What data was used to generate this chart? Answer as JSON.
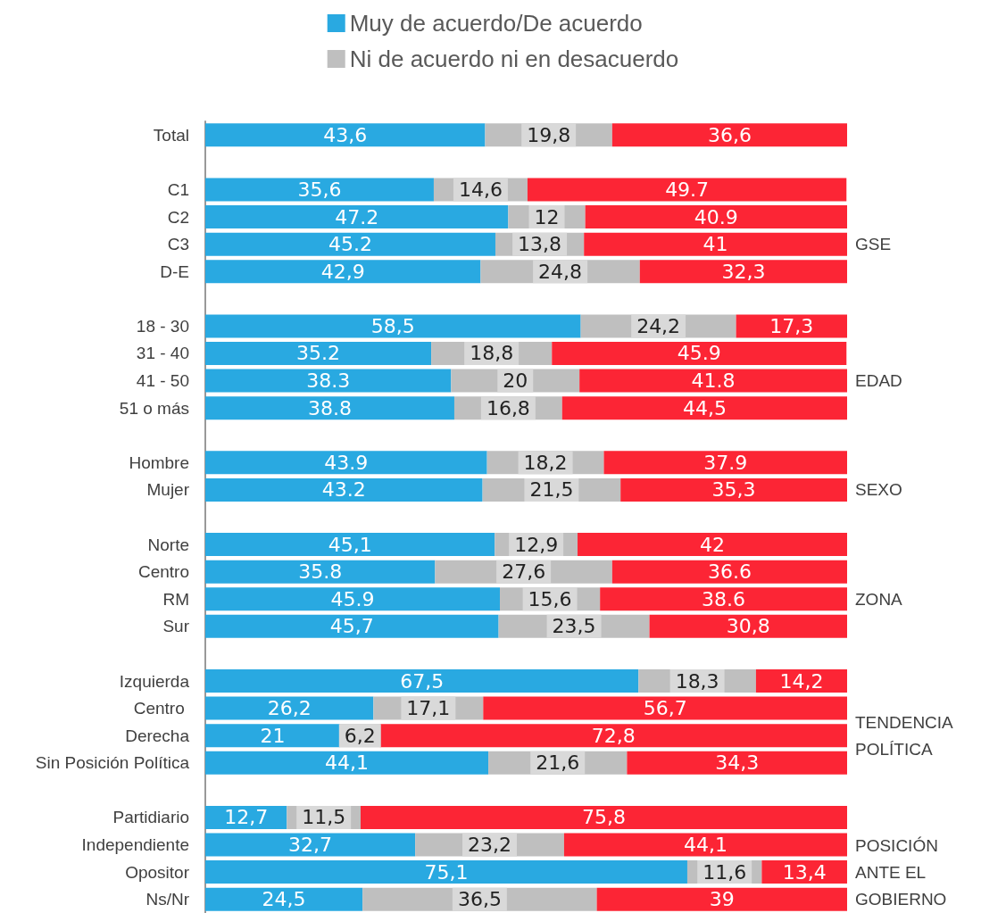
{
  "chart_data": {
    "type": "bar",
    "orientation": "horizontal",
    "stacked": true,
    "legend": "top",
    "tick_labels": "y",
    "xlim": [
      0,
      100
    ],
    "categories": [
      "Total",
      null,
      "C1",
      "C2",
      "C3",
      "D-E",
      null,
      "18 - 30",
      "31 - 40",
      "41 - 50",
      "51 o más",
      null,
      "Hombre",
      "Mujer",
      null,
      "Norte",
      "Centro",
      "RM",
      "Sur",
      null,
      "Izquierda",
      "Centro ",
      "Derecha",
      "Sin Posición Política",
      null,
      "Partidiario",
      "Independiente",
      "Opositor",
      "Ns/Nr"
    ],
    "series": [
      {
        "name": "Muy de acuerdo/De acuerdo",
        "color": "#29a9e1",
        "values": [
          43.6,
          null,
          35.6,
          47.2,
          45.2,
          42.9,
          null,
          58.5,
          35.2,
          38.3,
          38.8,
          null,
          43.9,
          43.2,
          null,
          45.1,
          35.8,
          45.9,
          45.7,
          null,
          67.5,
          26.2,
          21,
          44.1,
          null,
          12.7,
          32.7,
          75.1,
          24.5
        ],
        "value_labels": [
          "43,6",
          null,
          "35,6",
          "47.2",
          "45.2",
          "42,9",
          null,
          "58,5",
          "35.2",
          "38.3",
          "38.8",
          null,
          "43.9",
          "43.2",
          null,
          "45,1",
          "35.8",
          "45.9",
          "45,7",
          null,
          "67,5",
          "26,2",
          "21",
          "44,1",
          null,
          "12,7",
          "32,7",
          "75,1",
          "24,5"
        ]
      },
      {
        "name": "Ni de acuerdo ni en desacuerdo",
        "color": "#bfbfbf",
        "values": [
          19.8,
          null,
          14.6,
          12,
          13.8,
          24.8,
          null,
          24.2,
          18.8,
          20,
          16.8,
          null,
          18.2,
          21.5,
          null,
          12.9,
          27.6,
          15.6,
          23.5,
          null,
          18.3,
          17.1,
          6.2,
          21.6,
          null,
          11.5,
          23.2,
          11.6,
          36.5
        ],
        "value_labels": [
          "19,8",
          null,
          "14,6",
          "12",
          "13,8",
          "24,8",
          null,
          "24,2",
          "18,8",
          "20",
          "16,8",
          null,
          "18,2",
          "21,5",
          null,
          "12,9",
          "27,6",
          "15,6",
          "23,5",
          null,
          "18,3",
          "17,1",
          "6,2",
          "21,6",
          null,
          "11,5",
          "23,2",
          "11,6",
          "36,5"
        ]
      },
      {
        "color": "#fc2535",
        "values": [
          36.6,
          null,
          49.7,
          40.9,
          41,
          32.3,
          null,
          17.3,
          45.9,
          41.8,
          44.5,
          null,
          37.9,
          35.3,
          null,
          42,
          36.6,
          38.6,
          30.8,
          null,
          14.2,
          56.7,
          72.8,
          34.3,
          null,
          75.8,
          44.1,
          13.4,
          39
        ],
        "value_labels": [
          "36,6",
          null,
          "49.7",
          "40.9",
          "41",
          "32,3",
          null,
          "17,3",
          "45.9",
          "41.8",
          "44,5",
          null,
          "37.9",
          "35,3",
          null,
          "42",
          "36.6",
          "38.6",
          "30,8",
          null,
          "14,2",
          "56,7",
          "72,8",
          "34,3",
          null,
          "75,8",
          "44,1",
          "13,4",
          "39"
        ]
      }
    ],
    "annotations": [
      "GSE",
      "EDAD",
      "SEXO",
      "ZONA",
      "TENDENCIA\nPOLÍTICA",
      "POSICIÓN\nANTE EL\nGOBIERNO"
    ]
  }
}
